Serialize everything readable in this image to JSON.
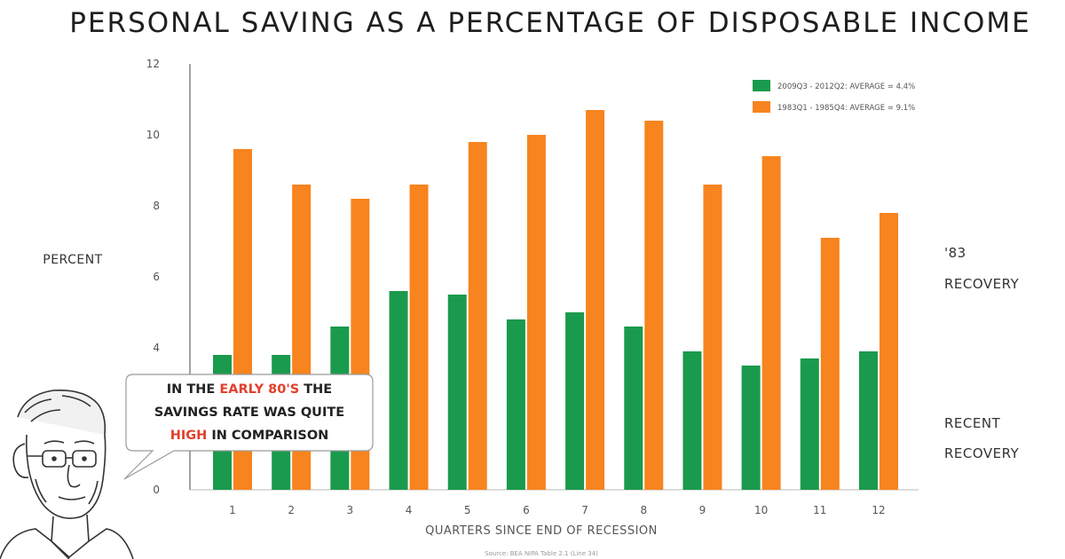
{
  "chart_data": {
    "type": "bar",
    "title": "PERSONAL SAVING AS A PERCENTAGE OF DISPOSABLE INCOME",
    "xlabel": "QUARTERS SINCE END OF RECESSION",
    "ylabel": "PERCENT",
    "ylim": [
      0,
      12
    ],
    "yticks": [
      0,
      4,
      6,
      8,
      10,
      12
    ],
    "categories": [
      "1",
      "2",
      "3",
      "4",
      "5",
      "6",
      "7",
      "8",
      "9",
      "10",
      "11",
      "12"
    ],
    "series": [
      {
        "name": "2009Q3 - 2012Q2: AVERAGE = 4.4%",
        "color": "#1a9a4c",
        "values": [
          3.8,
          3.8,
          4.6,
          5.6,
          5.5,
          4.8,
          5.0,
          4.6,
          3.9,
          3.5,
          3.7,
          3.9
        ]
      },
      {
        "name": "1983Q1 - 1985Q4: AVERAGE = 9.1%",
        "color": "#f7841e",
        "values": [
          9.6,
          8.6,
          8.2,
          8.6,
          9.8,
          10.0,
          10.7,
          10.4,
          8.6,
          9.4,
          7.1,
          7.8
        ]
      }
    ],
    "legend_position": "top-right",
    "grid": false
  },
  "side_notes": {
    "orange_note_line1": "'83",
    "orange_note_line2": "RECOVERY",
    "green_note_line1": "RECENT",
    "green_note_line2": "RECOVERY"
  },
  "speech_bubble": {
    "line1_a": "IN THE ",
    "line1_highlight": "EARLY 80'S",
    "line1_b": " THE",
    "line2": "SAVINGS RATE WAS QUITE",
    "line3_highlight": "HIGH",
    "line3_b": " IN COMPARISON"
  },
  "source": "Source: BEA NIPA Table 2.1 (Line 34)",
  "colors": {
    "green": "#1a9a4c",
    "orange": "#f7841e",
    "highlight": "#e2402c"
  },
  "icons": {
    "presenter": "cartoon-man-icon"
  }
}
